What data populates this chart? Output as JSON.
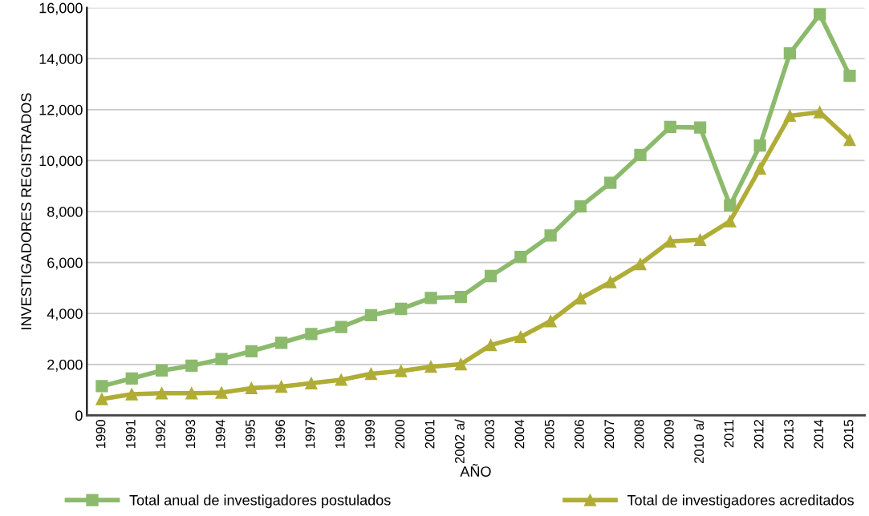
{
  "chart_data": {
    "type": "line",
    "xlabel": "AÑO",
    "ylabel": "INVESTIGADORES REGISTRADOS",
    "categories": [
      "1990",
      "1991",
      "1992",
      "1993",
      "1994",
      "1995",
      "1996",
      "1997",
      "1998",
      "1999",
      "2000",
      "2001",
      "2002 a/",
      "2003",
      "2004",
      "2005",
      "2006",
      "2007",
      "2008",
      "2009",
      "2010 a/",
      "2011",
      "2012",
      "2013",
      "2014",
      "2015"
    ],
    "series": [
      {
        "name": "Total anual de investigadores postulados",
        "color": "#8cba6c",
        "marker": "square",
        "values": [
          1150,
          1450,
          1760,
          1950,
          2210,
          2520,
          2850,
          3190,
          3470,
          3930,
          4180,
          4610,
          4650,
          5470,
          6220,
          7060,
          8200,
          9130,
          10220,
          11320,
          11300,
          8240,
          10590,
          14210,
          15740,
          13330
        ]
      },
      {
        "name": "Total de investigadores acreditados",
        "color": "#b0ad37",
        "marker": "triangle",
        "values": [
          640,
          830,
          870,
          870,
          890,
          1070,
          1130,
          1260,
          1400,
          1630,
          1740,
          1910,
          2010,
          2760,
          3080,
          3700,
          4590,
          5230,
          5940,
          6830,
          6890,
          7620,
          9690,
          11760,
          11900,
          10810
        ]
      }
    ],
    "ylim": [
      0,
      16000
    ],
    "yticks": [
      {
        "value": 0,
        "label": "0"
      },
      {
        "value": 2000,
        "label": "2,000"
      },
      {
        "value": 4000,
        "label": "4,000"
      },
      {
        "value": 6000,
        "label": "6,000"
      },
      {
        "value": 8000,
        "label": "8,000"
      },
      {
        "value": 10000,
        "label": "10,000"
      },
      {
        "value": 12000,
        "label": "12,000"
      },
      {
        "value": 14000,
        "label": "14,000"
      },
      {
        "value": 16000,
        "label": "16,000"
      }
    ],
    "grid": "y",
    "legend": "bottom",
    "line_style": "solid"
  }
}
